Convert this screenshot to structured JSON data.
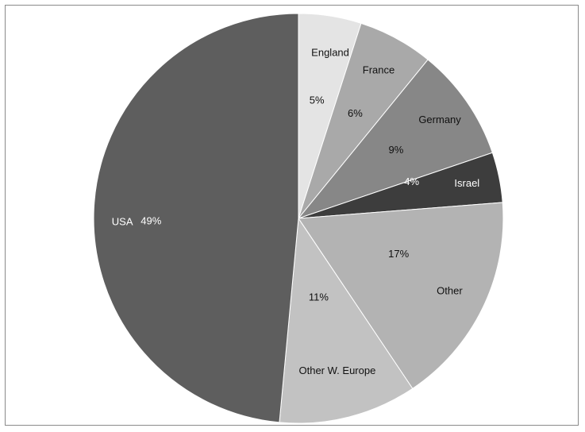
{
  "chart_data": {
    "type": "pie",
    "title": "",
    "start_angle_deg": 0,
    "direction": "clockwise",
    "slices": [
      {
        "label": "England",
        "value": 5,
        "value_label": "5%",
        "color": "#e4e4e4",
        "text_color": "#111111"
      },
      {
        "label": "France",
        "value": 6,
        "value_label": "6%",
        "color": "#a9a9a9",
        "text_color": "#111111"
      },
      {
        "label": "Germany",
        "value": 9,
        "value_label": "9%",
        "color": "#878787",
        "text_color": "#111111"
      },
      {
        "label": "Israel",
        "value": 4,
        "value_label": "4%",
        "color": "#3d3d3d",
        "text_color": "#ffffff"
      },
      {
        "label": "Other",
        "value": 17,
        "value_label": "17%",
        "color": "#b3b3b3",
        "text_color": "#111111"
      },
      {
        "label": "Other W. Europe",
        "value": 11,
        "value_label": "11%",
        "color": "#c2c2c2",
        "text_color": "#111111"
      },
      {
        "label": "USA",
        "value": 49,
        "value_label": "49%",
        "color": "#5e5e5e",
        "text_color": "#ffffff"
      }
    ]
  }
}
